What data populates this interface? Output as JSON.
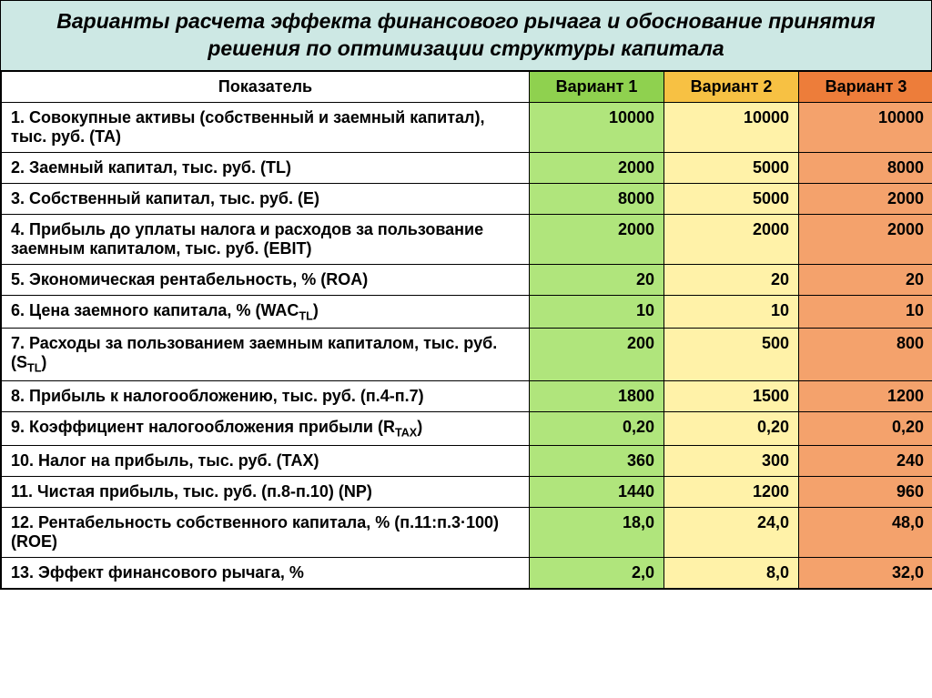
{
  "title": "Варианты расчета эффекта финансового рычага и обоснование принятия решения по оптимизации структуры капитала",
  "title_bg": "#cde8e4",
  "header": {
    "indicator": "Показатель",
    "v1": "Вариант 1",
    "v2": "Вариант 2",
    "v3": "Вариант 3"
  },
  "colors": {
    "header_v1": "#8fd14f",
    "header_v2": "#f7c143",
    "header_v3": "#ed7d3a",
    "col_v1": "#b0e57c",
    "col_v2": "#fff2a8",
    "col_v3": "#f4a26c",
    "label_bg": "#ffffff"
  },
  "rows": [
    {
      "label": "1. Совокупные активы (собственный и заемный капитал), тыс. руб. (ТА)",
      "v1": "10000",
      "v2": "10000",
      "v3": "10000"
    },
    {
      "label": "2. Заемный капитал, тыс. руб. (TL)",
      "v1": "2000",
      "v2": "5000",
      "v3": "8000"
    },
    {
      "label": "3. Собственный капитал, тыс. руб. (Е)",
      "v1": "8000",
      "v2": "5000",
      "v3": "2000"
    },
    {
      "label": "4. Прибыль до уплаты налога и расходов за пользование заемным капиталом, тыс. руб. (EBIT)",
      "v1": "2000",
      "v2": "2000",
      "v3": "2000"
    },
    {
      "label": "5. Экономическая рентабельность, % (ROA)",
      "v1": "20",
      "v2": "20",
      "v3": "20"
    },
    {
      "label_html": "6. Цена заемного капитала, % (WAC<sub>TL</sub>)",
      "v1": "10",
      "v2": "10",
      "v3": "10"
    },
    {
      "label_html": "7. Расходы за пользованием заемным капиталом, тыс. руб.  (S<sub>TL</sub>)",
      "v1": "200",
      "v2": "500",
      "v3": "800"
    },
    {
      "label": "8. Прибыль к налогообложению, тыс. руб. (п.4-п.7)",
      "v1": "1800",
      "v2": "1500",
      "v3": "1200"
    },
    {
      "label_html": "9. Коэффициент налогообложения прибыли (R<sub>TAX</sub>)",
      "v1": "0,20",
      "v2": "0,20",
      "v3": "0,20"
    },
    {
      "label": "10. Налог на прибыль, тыс. руб. (ТАХ)",
      "v1": "360",
      "v2": "300",
      "v3": "240"
    },
    {
      "label": "11. Чистая прибыль, тыс. руб. (п.8-п.10) (NP)",
      "v1": "1440",
      "v2": "1200",
      "v3": "960"
    },
    {
      "label": "12. Рентабельность собственного капитала, % (п.11:п.3·100) (ROE)",
      "v1": "18,0",
      "v2": "24,0",
      "v3": "48,0"
    },
    {
      "label": "13. Эффект финансового рычага, %",
      "v1": "2,0",
      "v2": "8,0",
      "v3": "32,0"
    }
  ]
}
